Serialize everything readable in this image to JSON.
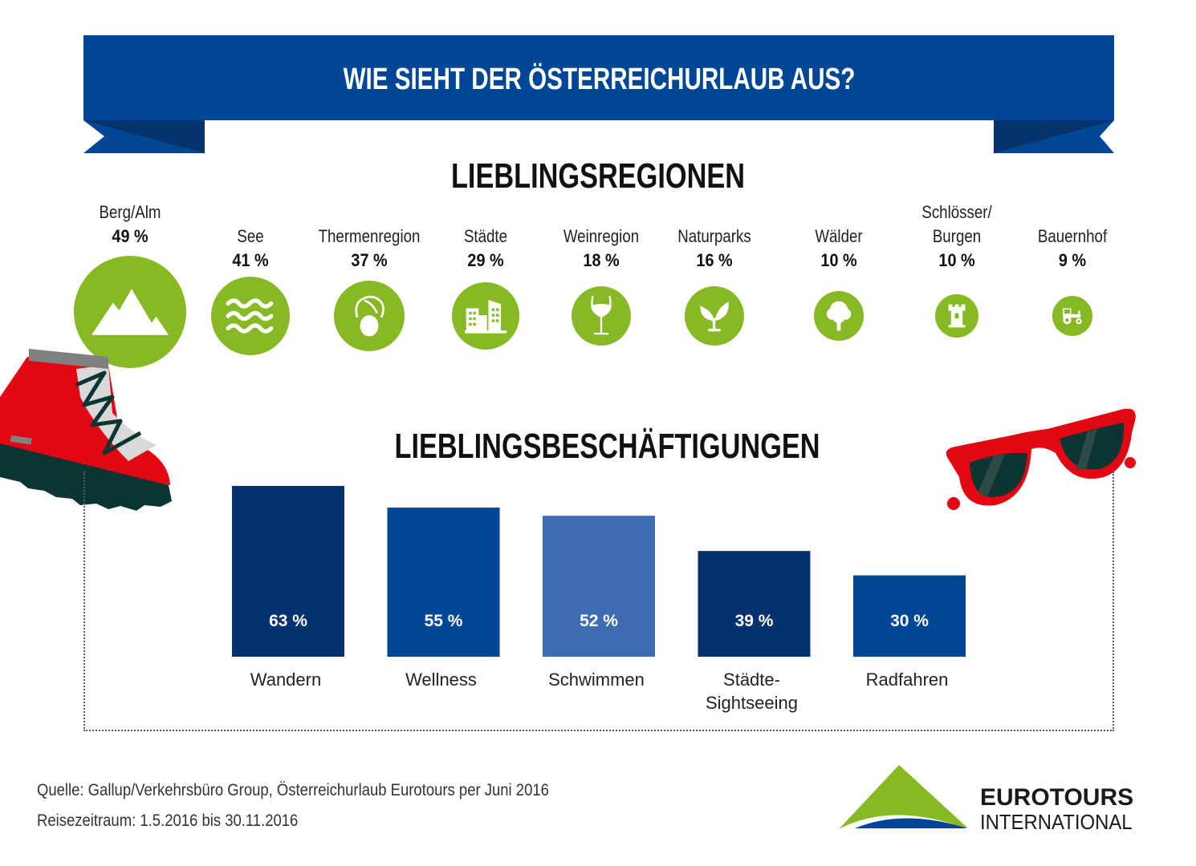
{
  "banner": {
    "title": "WIE SIEHT DER ÖSTERREICHURLAUB AUS?"
  },
  "regions": {
    "title": "LIEBLINGSREGIONEN",
    "items": [
      {
        "name": "Berg/Alm",
        "value": 49,
        "label": "49 %",
        "icon": "mountain-icon"
      },
      {
        "name": "See",
        "value": 41,
        "label": "41 %",
        "icon": "waves-icon"
      },
      {
        "name": "Thermenregion",
        "value": 37,
        "label": "37 %",
        "icon": "towel-head-icon"
      },
      {
        "name": "Städte",
        "value": 29,
        "label": "29 %",
        "icon": "buildings-icon"
      },
      {
        "name": "Weinregion",
        "value": 18,
        "label": "18 %",
        "icon": "wine-glass-icon"
      },
      {
        "name": "Naturparks",
        "value": 16,
        "label": "16 %",
        "icon": "sprout-icon"
      },
      {
        "name": "Wälder",
        "value": 10,
        "label": "10 %",
        "icon": "tree-icon"
      },
      {
        "name": "Schlösser/\nBurgen",
        "value": 10,
        "label": "10 %",
        "icon": "castle-tower-icon"
      },
      {
        "name": "Bauernhof",
        "value": 9,
        "label": "9 %",
        "icon": "tractor-icon"
      }
    ]
  },
  "chart_data": {
    "type": "bar",
    "title": "LIEBLINGSBESCHÄFTIGUNGEN",
    "categories": [
      "Wandern",
      "Wellness",
      "Schwimmen",
      "Städte-\nSightseeing",
      "Radfahren"
    ],
    "values": [
      63,
      55,
      52,
      39,
      30
    ],
    "value_labels": [
      "63 %",
      "55 %",
      "52 %",
      "39 %",
      "30 %"
    ],
    "colors": [
      "#05326e",
      "#004696",
      "#3f6bb0",
      "#05326e",
      "#004696"
    ],
    "xlabel": "",
    "ylabel": "",
    "ylim": [
      0,
      63
    ],
    "grid": false,
    "legend": "none"
  },
  "footer": {
    "source": "Quelle: Gallup/Verkehrsbüro Group, Österreichurlaub Eurotours per Juni 2016",
    "period": "Reisezeitraum: 1.5.2016 bis 30.11.2016"
  },
  "logo": {
    "line1": "EUROTOURS",
    "line2": "INTERNATIONAL"
  },
  "colors": {
    "banner": "#004696",
    "banner_dark": "#06326d",
    "green": "#86b924",
    "red": "#e30613",
    "dark": "#0b3532"
  }
}
